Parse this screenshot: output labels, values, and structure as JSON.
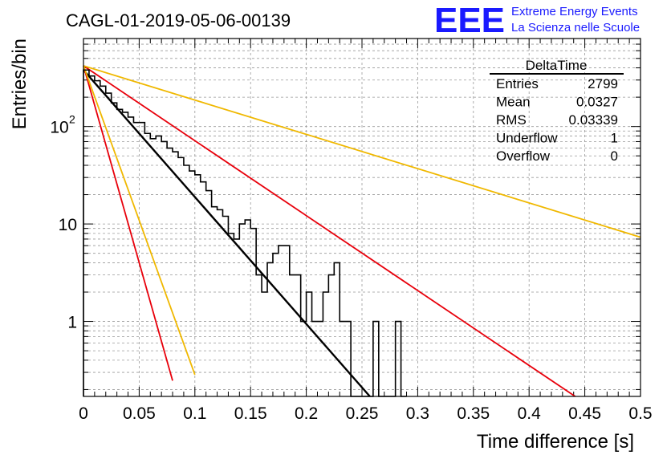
{
  "header": {
    "run_title": "CAGL-01-2019-05-06-00139",
    "logo_mark": "EEE",
    "logo_line1": "Extreme Energy Events",
    "logo_line2": "La Scienza nelle Scuole"
  },
  "stats_box": {
    "title": "DeltaTime",
    "rows": [
      {
        "label": "Entries",
        "value": "2799"
      },
      {
        "label": "Mean",
        "value": "0.0327"
      },
      {
        "label": "RMS",
        "value": "0.03339"
      },
      {
        "label": "Underflow",
        "value": "1"
      },
      {
        "label": "Overflow",
        "value": "0"
      }
    ]
  },
  "chart_data": {
    "type": "histogram",
    "xlabel": "Time difference [s]",
    "ylabel": "Entries/bin",
    "xlim": [
      0,
      0.5
    ],
    "ylim": [
      0.17,
      800
    ],
    "y_scale": "log",
    "grid": true,
    "x_ticks": [
      "0",
      "0.05",
      "0.1",
      "0.15",
      "0.2",
      "0.25",
      "0.3",
      "0.35",
      "0.4",
      "0.45",
      "0.5"
    ],
    "y_ticks": [
      {
        "value": 1,
        "label": "1"
      },
      {
        "value": 10,
        "label": "10"
      },
      {
        "value": 100,
        "label": "10",
        "exponent": "2"
      }
    ],
    "bin_width": 0.005,
    "histogram": [
      380,
      330,
      295,
      260,
      220,
      175,
      150,
      140,
      125,
      110,
      110,
      85,
      75,
      80,
      70,
      60,
      55,
      48,
      40,
      35,
      32,
      27,
      22,
      15,
      14,
      12,
      8,
      7,
      10,
      11,
      9,
      3,
      2,
      4,
      5,
      6,
      6,
      3,
      3,
      1,
      2,
      1,
      1,
      2,
      3,
      4,
      1,
      1,
      0,
      0,
      0,
      0,
      1,
      0,
      0,
      0,
      1,
      0
    ],
    "curves": [
      {
        "color": "#000000",
        "y0": 380,
        "slope_per_s": -30.0
      },
      {
        "color": "#e8000b",
        "y0": 420,
        "slope_per_s": -17.7,
        "x_range": [
          0,
          0.5
        ]
      },
      {
        "color": "#f0b800",
        "y0": 420,
        "slope_per_s": -8.1,
        "x_range": [
          0,
          0.5
        ]
      },
      {
        "color": "#e8000b",
        "y0": 420,
        "slope_per_s": -93.0,
        "x_range": [
          0,
          0.08
        ]
      },
      {
        "color": "#f0b800",
        "y0": 420,
        "slope_per_s": -73.0,
        "x_range": [
          0,
          0.1
        ]
      }
    ]
  }
}
